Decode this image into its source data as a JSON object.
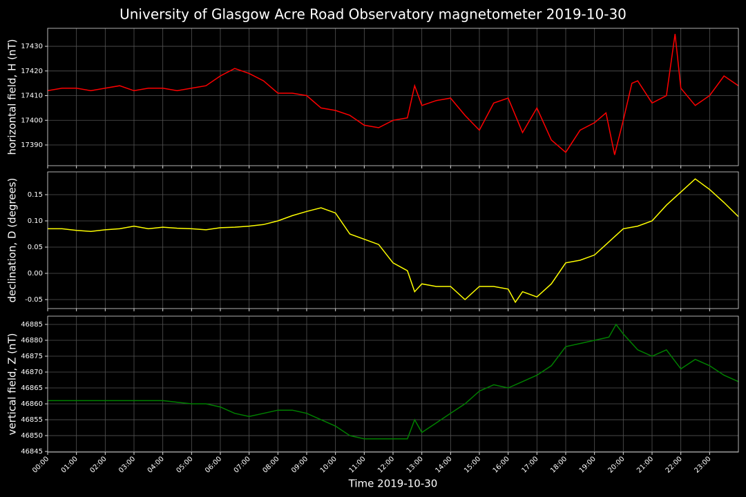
{
  "title": "University of Glasgow Acre Road Observatory magnetometer 2019-10-30",
  "xaxis": {
    "label": "Time 2019-10-30",
    "lim": [
      0,
      24
    ],
    "ticks": [
      {
        "value": 0,
        "label": "00:00"
      },
      {
        "value": 1,
        "label": "01:00"
      },
      {
        "value": 2,
        "label": "02:00"
      },
      {
        "value": 3,
        "label": "03:00"
      },
      {
        "value": 4,
        "label": "04:00"
      },
      {
        "value": 5,
        "label": "05:00"
      },
      {
        "value": 6,
        "label": "06:00"
      },
      {
        "value": 7,
        "label": "07:00"
      },
      {
        "value": 8,
        "label": "08:00"
      },
      {
        "value": 9,
        "label": "09:00"
      },
      {
        "value": 10,
        "label": "10:00"
      },
      {
        "value": 11,
        "label": "11:00"
      },
      {
        "value": 12,
        "label": "12:00"
      },
      {
        "value": 13,
        "label": "13:00"
      },
      {
        "value": 14,
        "label": "14:00"
      },
      {
        "value": 15,
        "label": "15:00"
      },
      {
        "value": 16,
        "label": "16:00"
      },
      {
        "value": 17,
        "label": "17:00"
      },
      {
        "value": 18,
        "label": "18:00"
      },
      {
        "value": 19,
        "label": "19:00"
      },
      {
        "value": 20,
        "label": "20:00"
      },
      {
        "value": 21,
        "label": "21:00"
      },
      {
        "value": 22,
        "label": "22:00"
      },
      {
        "value": 23,
        "label": "23:00"
      }
    ]
  },
  "chart_data": [
    {
      "type": "line",
      "ylabel": "horizontal field, H (nT)",
      "color": "#ff0000",
      "grid": true,
      "ylim": [
        17381.6,
        17437.3
      ],
      "yticks": [
        17390,
        17400,
        17410,
        17420,
        17430
      ],
      "x": [
        0,
        0.5,
        1,
        1.5,
        2,
        2.5,
        3,
        3.5,
        4,
        4.5,
        5,
        5.5,
        6,
        6.5,
        7,
        7.5,
        8,
        8.5,
        9,
        9.5,
        10,
        10.5,
        11,
        11.5,
        12,
        12.5,
        12.75,
        13,
        13.5,
        14,
        14.5,
        15,
        15.5,
        16,
        16.5,
        17,
        17.5,
        18,
        18.5,
        19,
        19.4,
        19.7,
        20,
        20.3,
        20.5,
        21,
        21.5,
        21.8,
        22,
        22.5,
        23,
        23.5,
        24
      ],
      "values": [
        17412,
        17413,
        17413,
        17412,
        17413,
        17414,
        17412,
        17413,
        17413,
        17412,
        17413,
        17414,
        17418,
        17421,
        17419,
        17416,
        17411,
        17411,
        17410,
        17405,
        17404,
        17402,
        17398,
        17397,
        17400,
        17401,
        17414,
        17406,
        17408,
        17409,
        17402,
        17396,
        17407,
        17409,
        17395,
        17405,
        17392,
        17387,
        17396,
        17399,
        17403,
        17386,
        17400,
        17415,
        17416,
        17407,
        17410,
        17435,
        17413,
        17406,
        17410,
        17418,
        17414
      ]
    },
    {
      "type": "line",
      "ylabel": "declination, D (degrees)",
      "color": "#ffff00",
      "grid": true,
      "ylim": [
        -0.0671,
        0.1934
      ],
      "yticks": [
        -0.05,
        {
          "value": 0,
          "label": "0.00"
        },
        0.05,
        {
          "value": 0.1,
          "label": "0.10"
        },
        0.15
      ],
      "x": [
        0,
        0.5,
        1,
        1.5,
        2,
        2.5,
        3,
        3.5,
        4,
        4.5,
        5,
        5.5,
        6,
        6.5,
        7,
        7.5,
        8,
        8.5,
        9,
        9.5,
        10,
        10.5,
        11,
        11.5,
        12,
        12.5,
        12.75,
        13,
        13.5,
        14,
        14.5,
        15,
        15.5,
        16,
        16.25,
        16.5,
        17,
        17.5,
        18,
        18.5,
        19,
        19.5,
        20,
        20.5,
        21,
        21.5,
        22,
        22.5,
        23,
        23.5,
        24
      ],
      "values": [
        0.085,
        0.085,
        0.082,
        0.08,
        0.083,
        0.085,
        0.09,
        0.085,
        0.088,
        0.086,
        0.085,
        0.083,
        0.087,
        0.088,
        0.09,
        0.093,
        0.1,
        0.11,
        0.118,
        0.125,
        0.115,
        0.075,
        0.065,
        0.055,
        0.02,
        0.005,
        -0.035,
        -0.02,
        -0.025,
        -0.025,
        -0.05,
        -0.025,
        -0.025,
        -0.03,
        -0.055,
        -0.035,
        -0.045,
        -0.02,
        0.02,
        0.025,
        0.035,
        0.06,
        0.085,
        0.09,
        0.1,
        0.13,
        0.155,
        0.18,
        0.16,
        0.135,
        0.108
      ]
    },
    {
      "type": "line",
      "ylabel": "vertical field, Z (nT)",
      "color": "#008000",
      "grid": true,
      "ylim": [
        46844.8,
        46887.6
      ],
      "yticks": [
        46845,
        46850,
        46855,
        46860,
        46865,
        46870,
        46875,
        46880,
        46885
      ],
      "x": [
        0,
        0.5,
        1,
        1.5,
        2,
        2.5,
        3,
        3.5,
        4,
        4.5,
        5,
        5.5,
        6,
        6.5,
        7,
        7.5,
        8,
        8.5,
        9,
        9.5,
        10,
        10.5,
        11,
        11.5,
        12,
        12.5,
        12.75,
        13,
        13.5,
        14,
        14.5,
        15,
        15.5,
        16,
        16.5,
        17,
        17.5,
        18,
        18.5,
        19,
        19.5,
        19.75,
        20,
        20.5,
        21,
        21.5,
        22,
        22.5,
        23,
        23.5,
        24
      ],
      "values": [
        46861,
        46861,
        46861,
        46861,
        46861,
        46861,
        46861,
        46861,
        46861,
        46860.5,
        46860,
        46860,
        46859,
        46857,
        46856,
        46857,
        46858,
        46858,
        46857,
        46855,
        46853,
        46850,
        46849,
        46849,
        46849,
        46849,
        46855,
        46851,
        46854,
        46857,
        46860,
        46864,
        46866,
        46865,
        46867,
        46869,
        46872,
        46878,
        46879,
        46880,
        46881,
        46885,
        46882,
        46877,
        46875,
        46877,
        46871,
        46874,
        46872,
        46869,
        46867
      ]
    }
  ]
}
